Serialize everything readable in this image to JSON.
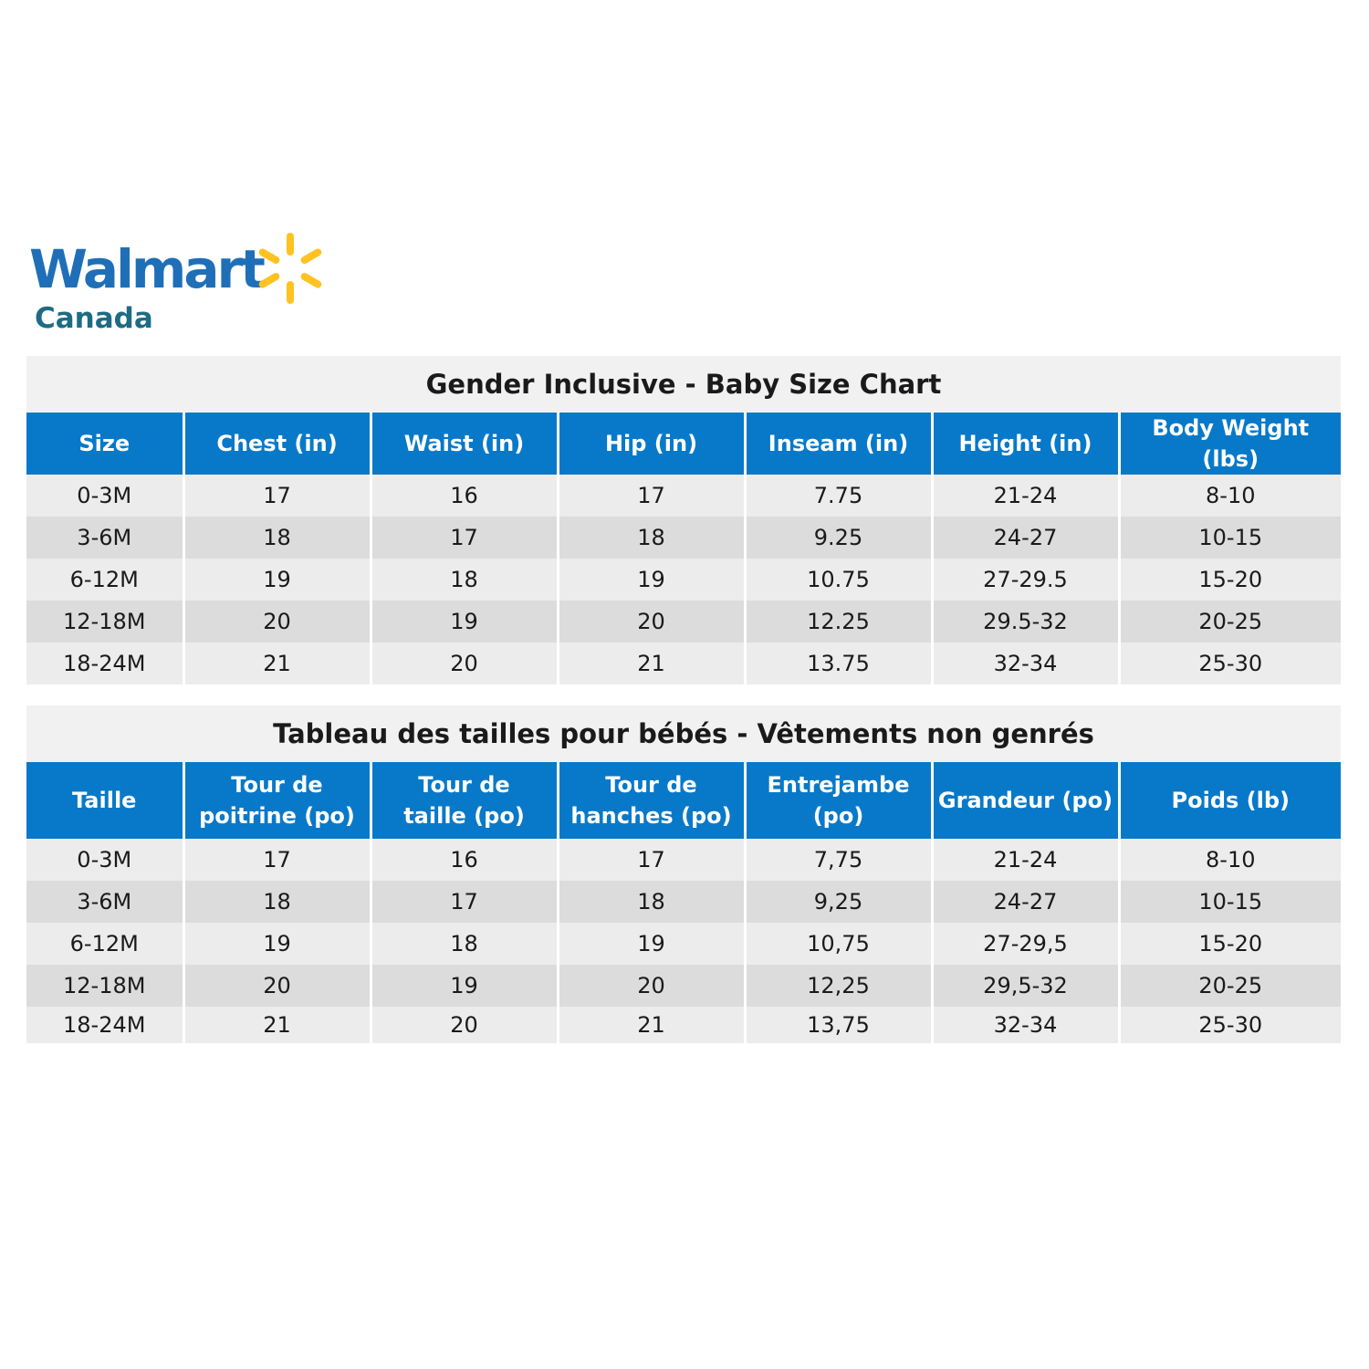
{
  "logo": {
    "wordmark": "Walmart",
    "subtitle": "Canada",
    "icon": "spark-icon",
    "colors": {
      "word": "#1f6fb8",
      "subtitle": "#1e6b85",
      "spark": "#ffc220"
    }
  },
  "colors": {
    "header_bg": "#0879c9",
    "header_text": "#ffffff",
    "row_light": "#ececec",
    "row_dark": "#dcdcdc",
    "title_bg": "#f1f1f1"
  },
  "chart_en": {
    "title": "Gender Inclusive - Baby Size Chart",
    "headers": [
      "Size",
      "Chest (in)",
      "Waist (in)",
      "Hip (in)",
      "Inseam (in)",
      "Height (in)",
      "Body Weight (lbs)"
    ],
    "rows": [
      [
        "0-3M",
        "17",
        "16",
        "17",
        "7.75",
        "21-24",
        "8-10"
      ],
      [
        "3-6M",
        "18",
        "17",
        "18",
        "9.25",
        "24-27",
        "10-15"
      ],
      [
        "6-12M",
        "19",
        "18",
        "19",
        "10.75",
        "27-29.5",
        "15-20"
      ],
      [
        "12-18M",
        "20",
        "19",
        "20",
        "12.25",
        "29.5-32",
        "20-25"
      ],
      [
        "18-24M",
        "21",
        "20",
        "21",
        "13.75",
        "32-34",
        "25-30"
      ]
    ]
  },
  "chart_fr": {
    "title": "Tableau des tailles pour bébés - Vêtements non genrés",
    "headers": [
      [
        "Taille"
      ],
      [
        "Tour de",
        "poitrine (po)"
      ],
      [
        "Tour de",
        "taille (po)"
      ],
      [
        "Tour de",
        "hanches (po)"
      ],
      [
        "Entrejambe",
        "(po)"
      ],
      [
        "Grandeur (po)"
      ],
      [
        "Poids (lb)"
      ]
    ],
    "rows": [
      [
        "0-3M",
        "17",
        "16",
        "17",
        "7,75",
        "21-24",
        "8-10"
      ],
      [
        "3-6M",
        "18",
        "17",
        "18",
        "9,25",
        "24-27",
        "10-15"
      ],
      [
        "6-12M",
        "19",
        "18",
        "19",
        "10,75",
        "27-29,5",
        "15-20"
      ],
      [
        "12-18M",
        "20",
        "19",
        "20",
        "12,25",
        "29,5-32",
        "20-25"
      ],
      [
        "18-24M",
        "21",
        "20",
        "21",
        "13,75",
        "32-34",
        "25-30"
      ]
    ]
  }
}
